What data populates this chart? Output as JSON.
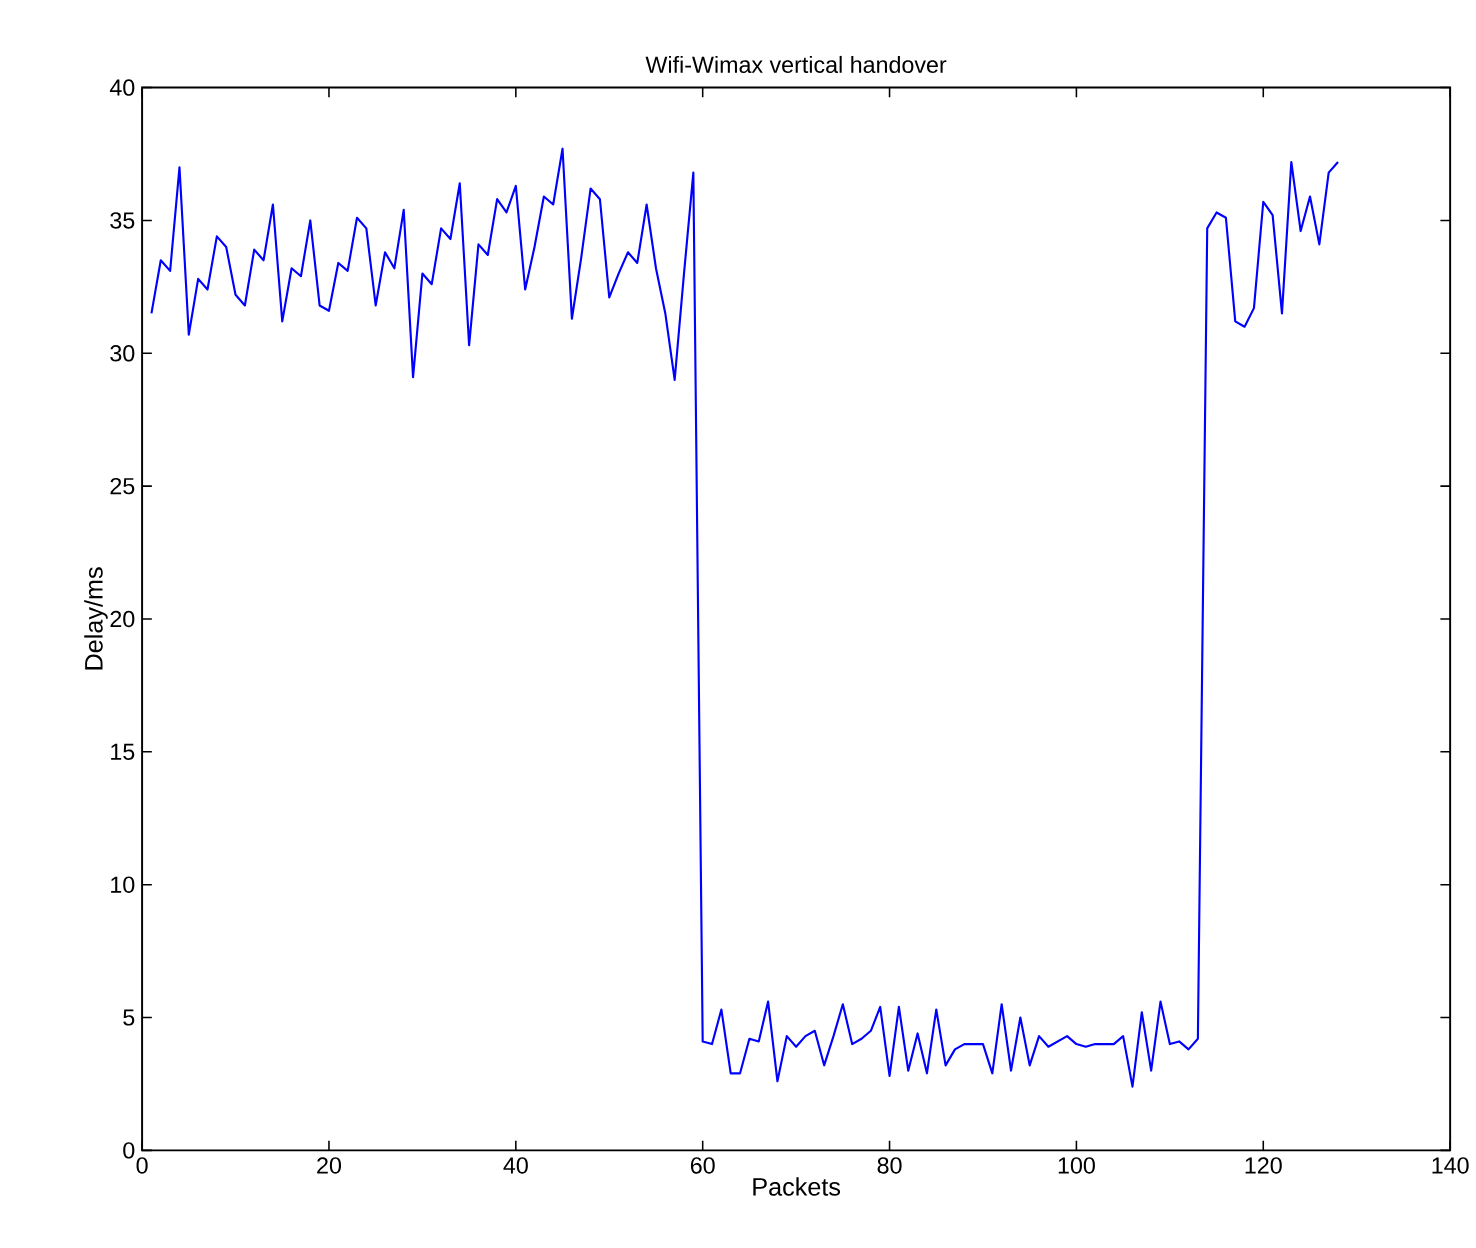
{
  "chart_data": {
    "type": "line",
    "title": "Wifi-Wimax vertical handover",
    "xlabel": "Packets",
    "ylabel": "Delay/ms",
    "x": [
      1,
      2,
      3,
      4,
      5,
      6,
      7,
      8,
      9,
      10,
      11,
      12,
      13,
      14,
      15,
      16,
      17,
      18,
      19,
      20,
      21,
      22,
      23,
      24,
      25,
      26,
      27,
      28,
      29,
      30,
      31,
      32,
      33,
      34,
      35,
      36,
      37,
      38,
      39,
      40,
      41,
      42,
      43,
      44,
      45,
      46,
      47,
      48,
      49,
      50,
      51,
      52,
      53,
      54,
      55,
      56,
      57,
      58,
      59,
      60,
      61,
      62,
      63,
      64,
      65,
      66,
      67,
      68,
      69,
      70,
      71,
      72,
      73,
      74,
      75,
      76,
      77,
      78,
      79,
      80,
      81,
      82,
      83,
      84,
      85,
      86,
      87,
      88,
      89,
      90,
      91,
      92,
      93,
      94,
      95,
      96,
      97,
      98,
      99,
      100,
      101,
      102,
      103,
      104,
      105,
      106,
      107,
      108,
      109,
      110,
      111,
      112,
      113,
      114,
      115,
      116,
      117,
      118,
      119,
      120,
      121,
      122,
      123,
      124,
      125,
      126,
      127,
      128
    ],
    "series": [
      {
        "color": "#0000ff",
        "values": [
          31.5,
          33.5,
          33.1,
          37,
          30.7,
          32.8,
          32.4,
          34.4,
          34.0,
          32.2,
          31.8,
          33.9,
          33.5,
          35.6,
          31.2,
          33.2,
          32.9,
          35.0,
          31.8,
          31.6,
          33.4,
          33.1,
          35.1,
          34.7,
          31.8,
          33.8,
          33.2,
          35.4,
          29.1,
          33.0,
          32.6,
          34.7,
          34.3,
          36.4,
          30.3,
          34.1,
          33.7,
          35.8,
          35.3,
          36.3,
          32.4,
          34.0,
          35.9,
          35.6,
          37.7,
          31.3,
          33.6,
          36.2,
          35.8,
          32.1,
          33.0,
          33.8,
          33.4,
          35.6,
          33.2,
          31.5,
          29.0,
          33.0,
          36.8,
          4.1,
          4.0,
          5.3,
          2.9,
          2.9,
          4.2,
          4.1,
          5.6,
          2.6,
          4.3,
          3.9,
          4.3,
          4.5,
          3.2,
          4.3,
          5.5,
          4.0,
          4.2,
          4.5,
          5.4,
          2.8,
          5.4,
          3.0,
          4.4,
          2.9,
          5.3,
          3.2,
          3.8,
          4.0,
          4.0,
          4.0,
          2.9,
          5.5,
          3.0,
          5.0,
          3.2,
          4.3,
          3.9,
          4.1,
          4.3,
          4.0,
          3.9,
          4.0,
          4.0,
          4.0,
          4.3,
          2.4,
          5.2,
          3.0,
          5.6,
          4.0,
          4.1,
          3.8,
          4.2,
          34.7,
          35.3,
          35.1,
          31.2,
          31.0,
          31.7,
          35.7,
          35.2,
          31.5,
          37.2,
          34.6,
          35.9,
          34.1,
          36.8,
          37.2
        ]
      }
    ],
    "xlim": [
      0,
      140
    ],
    "ylim": [
      0,
      40
    ],
    "xticks": [
      0,
      20,
      40,
      60,
      80,
      100,
      120,
      140
    ],
    "yticks": [
      0,
      5,
      10,
      15,
      20,
      25,
      30,
      35,
      40
    ]
  }
}
